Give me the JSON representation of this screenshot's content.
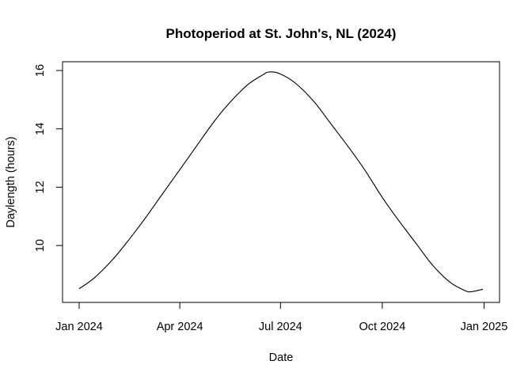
{
  "chart_data": {
    "type": "line",
    "title": "Photoperiod at St. John's, NL (2024)",
    "xlabel": "Date",
    "ylabel": "Daylength (hours)",
    "x_ticks": [
      "Jan 2024",
      "Apr 2024",
      "Jul 2024",
      "Oct 2024",
      "Jan 2025"
    ],
    "y_ticks": [
      10,
      12,
      14,
      16
    ],
    "xlim": [
      "2023-12-17",
      "2025-01-15"
    ],
    "ylim": [
      8.05,
      16.3
    ],
    "grid": false,
    "legend": "none",
    "line_color": "#000000",
    "series": [
      {
        "x": [
          "2024-01-01",
          "2024-01-15",
          "2024-02-01",
          "2024-02-15",
          "2024-03-01",
          "2024-03-15",
          "2024-04-01",
          "2024-04-15",
          "2024-05-01",
          "2024-05-15",
          "2024-06-01",
          "2024-06-15",
          "2024-06-21",
          "2024-07-01",
          "2024-07-15",
          "2024-08-01",
          "2024-08-15",
          "2024-09-01",
          "2024-09-15",
          "2024-10-01",
          "2024-10-15",
          "2024-11-01",
          "2024-11-15",
          "2024-12-01",
          "2024-12-15",
          "2024-12-21",
          "2024-12-31"
        ],
        "y": [
          8.52,
          8.9,
          9.55,
          10.2,
          10.95,
          11.7,
          12.6,
          13.35,
          14.2,
          14.85,
          15.5,
          15.85,
          15.95,
          15.88,
          15.55,
          14.9,
          14.2,
          13.35,
          12.6,
          11.65,
          10.9,
          10.05,
          9.35,
          8.75,
          8.45,
          8.42,
          8.5
        ]
      }
    ]
  }
}
